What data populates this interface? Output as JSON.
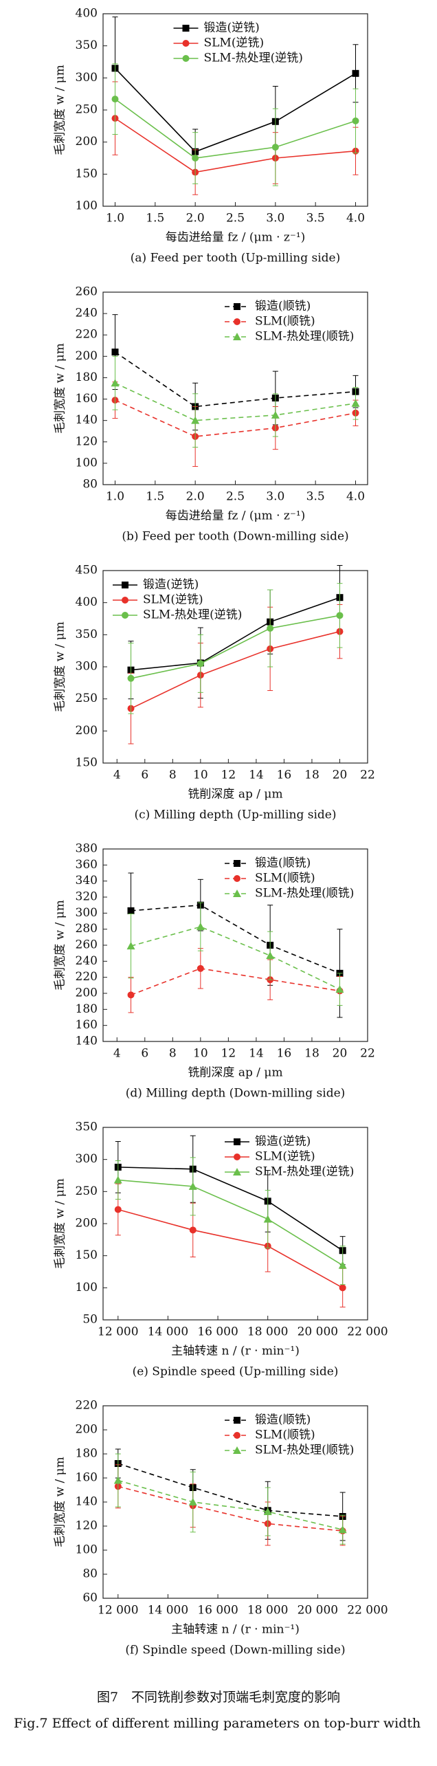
{
  "chart_data": [
    {
      "type": "line",
      "caption": "(a) Feed per tooth (Up-milling side)",
      "x_label": "每齿进给量 fz / (μm · z⁻¹)",
      "y_label": "毛刺宽度 w / μm",
      "x": [
        1,
        2,
        3,
        4
      ],
      "xlim": [
        0.85,
        4.15
      ],
      "xticks": [
        {
          "value": 1,
          "label": "1.0"
        },
        {
          "value": 1.5,
          "label": "1.5"
        },
        {
          "value": 2,
          "label": "2.0"
        },
        {
          "value": 2.5,
          "label": "2.5"
        },
        {
          "value": 3,
          "label": "3.0"
        },
        {
          "value": 3.5,
          "label": "3.5"
        },
        {
          "value": 4,
          "label": "4.0"
        }
      ],
      "ylim": [
        100,
        400
      ],
      "yticks": [
        100,
        150,
        200,
        250,
        300,
        350,
        400
      ],
      "legend": "upper center",
      "series": [
        {
          "name": "锻造(逆铣)",
          "color": "#000000",
          "marker": "square",
          "linestyle": "solid",
          "values": [
            315,
            185,
            232,
            307
          ],
          "errors": [
            80,
            35,
            55,
            45
          ]
        },
        {
          "name": "SLM(逆铣)",
          "color": "#e8312a",
          "marker": "circle",
          "linestyle": "solid",
          "values": [
            237,
            153,
            175,
            186
          ],
          "errors": [
            57,
            35,
            40,
            37
          ]
        },
        {
          "name": "SLM-热处理(逆铣)",
          "color": "#6abf4b",
          "marker": "circle",
          "linestyle": "solid",
          "values": [
            267,
            175,
            192,
            233
          ],
          "errors": [
            55,
            40,
            60,
            50
          ]
        }
      ]
    },
    {
      "type": "line",
      "caption": "(b) Feed per tooth (Down-milling side)",
      "x_label": "每齿进给量 fz / (μm · z⁻¹)",
      "y_label": "毛刺宽度 w / μm",
      "x": [
        1,
        2,
        3,
        4
      ],
      "xlim": [
        0.85,
        4.15
      ],
      "xticks": [
        {
          "value": 1,
          "label": "1.0"
        },
        {
          "value": 1.5,
          "label": "1.5"
        },
        {
          "value": 2,
          "label": "2.0"
        },
        {
          "value": 2.5,
          "label": "2.5"
        },
        {
          "value": 3,
          "label": "3.0"
        },
        {
          "value": 3.5,
          "label": "3.5"
        },
        {
          "value": 4,
          "label": "4.0"
        }
      ],
      "ylim": [
        80,
        260
      ],
      "yticks": [
        80,
        100,
        120,
        140,
        160,
        180,
        200,
        220,
        240,
        260
      ],
      "legend": "upper right",
      "series": [
        {
          "name": "锻造(顺铣)",
          "color": "#000000",
          "marker": "square",
          "linestyle": "dashed",
          "values": [
            204,
            153,
            161,
            167
          ],
          "errors": [
            35,
            22,
            25,
            15
          ]
        },
        {
          "name": "SLM(顺铣)",
          "color": "#e8312a",
          "marker": "circle",
          "linestyle": "dashed",
          "values": [
            159,
            125,
            133,
            147
          ],
          "errors": [
            17,
            28,
            20,
            12
          ]
        },
        {
          "name": "SLM-热处理(顺铣)",
          "color": "#6abf4b",
          "marker": "triangle",
          "linestyle": "dashed",
          "values": [
            175,
            140,
            145,
            156
          ],
          "errors": [
            25,
            25,
            20,
            15
          ]
        }
      ]
    },
    {
      "type": "line",
      "caption": "(c) Milling depth (Up-milling side)",
      "x_label": "铣削深度 ap / μm",
      "y_label": "毛刺宽度 w / μm",
      "x": [
        5,
        10,
        15,
        20
      ],
      "xlim": [
        3,
        22
      ],
      "xticks": [
        4,
        6,
        8,
        10,
        12,
        14,
        16,
        18,
        20,
        22
      ],
      "ylim": [
        150,
        450
      ],
      "yticks": [
        150,
        200,
        250,
        300,
        350,
        400,
        450
      ],
      "legend": "upper left",
      "series": [
        {
          "name": "锻造(逆铣)",
          "color": "#000000",
          "marker": "square",
          "linestyle": "solid",
          "values": [
            295,
            306,
            370,
            408
          ],
          "errors": [
            45,
            55,
            50,
            50
          ]
        },
        {
          "name": "SLM(逆铣)",
          "color": "#e8312a",
          "marker": "circle",
          "linestyle": "solid",
          "values": [
            235,
            287,
            328,
            355
          ],
          "errors": [
            55,
            50,
            65,
            42
          ]
        },
        {
          "name": "SLM-热处理(逆铣)",
          "color": "#6abf4b",
          "marker": "circle",
          "linestyle": "solid",
          "values": [
            282,
            305,
            360,
            380
          ],
          "errors": [
            55,
            45,
            60,
            50
          ]
        }
      ]
    },
    {
      "type": "line",
      "caption": "(d) Milling depth (Down-milling side)",
      "x_label": "铣削深度 ap / μm",
      "y_label": "毛刺宽度 w / μm",
      "x": [
        5,
        10,
        15,
        20
      ],
      "xlim": [
        3,
        22
      ],
      "xticks": [
        4,
        6,
        8,
        10,
        12,
        14,
        16,
        18,
        20,
        22
      ],
      "ylim": [
        140,
        380
      ],
      "yticks": [
        140,
        160,
        180,
        200,
        220,
        240,
        260,
        280,
        300,
        320,
        340,
        360,
        380
      ],
      "legend": "upper right",
      "series": [
        {
          "name": "锻造(顺铣)",
          "color": "#000000",
          "marker": "square",
          "linestyle": "dashed",
          "values": [
            303,
            310,
            260,
            225
          ],
          "errors": [
            47,
            32,
            50,
            55
          ]
        },
        {
          "name": "SLM(顺铣)",
          "color": "#e8312a",
          "marker": "circle",
          "linestyle": "dashed",
          "values": [
            198,
            231,
            217,
            203
          ],
          "errors": [
            22,
            25,
            25,
            18
          ]
        },
        {
          "name": "SLM-热处理(顺铣)",
          "color": "#6abf4b",
          "marker": "triangle",
          "linestyle": "dashed",
          "values": [
            259,
            283,
            247,
            205
          ],
          "errors": [
            40,
            30,
            30,
            20
          ]
        }
      ]
    },
    {
      "type": "line",
      "caption": "(e) Spindle speed (Up-milling side)",
      "x_label": "主轴转速 n / (r · min⁻¹)",
      "y_label": "毛刺宽度 w / μm",
      "x": [
        12000,
        15000,
        18000,
        21000
      ],
      "xlim": [
        11400,
        22000
      ],
      "xticks": [
        {
          "value": 12000,
          "label": "12 000"
        },
        {
          "value": 14000,
          "label": "14 000"
        },
        {
          "value": 16000,
          "label": "16 000"
        },
        {
          "value": 18000,
          "label": "18 000"
        },
        {
          "value": 20000,
          "label": "20 000"
        },
        {
          "value": 22000,
          "label": "22 000"
        }
      ],
      "ylim": [
        50,
        350
      ],
      "yticks": [
        50,
        100,
        150,
        200,
        250,
        300,
        350
      ],
      "legend": "upper right",
      "series": [
        {
          "name": "锻造(逆铣)",
          "color": "#000000",
          "marker": "square",
          "linestyle": "solid",
          "values": [
            288,
            285,
            235,
            158
          ],
          "errors": [
            40,
            52,
            48,
            22
          ]
        },
        {
          "name": "SLM(逆铣)",
          "color": "#e8312a",
          "marker": "circle",
          "linestyle": "solid",
          "values": [
            222,
            190,
            165,
            100
          ],
          "errors": [
            40,
            42,
            40,
            30
          ]
        },
        {
          "name": "SLM-热处理(逆铣)",
          "color": "#6abf4b",
          "marker": "triangle",
          "linestyle": "solid",
          "values": [
            268,
            258,
            207,
            135
          ],
          "errors": [
            30,
            45,
            45,
            30
          ]
        }
      ]
    },
    {
      "type": "line",
      "caption": "(f) Spindle speed (Down-milling side)",
      "x_label": "主轴转速 n / (r · min⁻¹)",
      "y_label": "毛刺宽度 w / μm",
      "x": [
        12000,
        15000,
        18000,
        21000
      ],
      "xlim": [
        11400,
        22000
      ],
      "xticks": [
        {
          "value": 12000,
          "label": "12 000"
        },
        {
          "value": 14000,
          "label": "14 000"
        },
        {
          "value": 16000,
          "label": "16 000"
        },
        {
          "value": 18000,
          "label": "18 000"
        },
        {
          "value": 20000,
          "label": "20 000"
        },
        {
          "value": 22000,
          "label": "22 000"
        }
      ],
      "ylim": [
        60,
        220
      ],
      "yticks": [
        60,
        80,
        100,
        120,
        140,
        160,
        180,
        200,
        220
      ],
      "legend": "upper right",
      "series": [
        {
          "name": "锻造(顺铣)",
          "color": "#000000",
          "marker": "square",
          "linestyle": "dashed",
          "values": [
            172,
            152,
            133,
            128
          ],
          "errors": [
            12,
            15,
            24,
            20
          ]
        },
        {
          "name": "SLM(顺铣)",
          "color": "#e8312a",
          "marker": "circle",
          "linestyle": "dashed",
          "values": [
            153,
            137,
            122,
            116
          ],
          "errors": [
            18,
            18,
            18,
            12
          ]
        },
        {
          "name": "SLM-热处理(顺铣)",
          "color": "#6abf4b",
          "marker": "triangle",
          "linestyle": "dashed",
          "values": [
            158,
            140,
            132,
            117
          ],
          "errors": [
            22,
            25,
            20,
            12
          ]
        }
      ]
    }
  ],
  "figure_caption": {
    "zh": "图7　不同铣削参数对顶端毛刺宽度的影响",
    "en": "Fig.7  Effect of different milling parameters on top-burr width"
  }
}
